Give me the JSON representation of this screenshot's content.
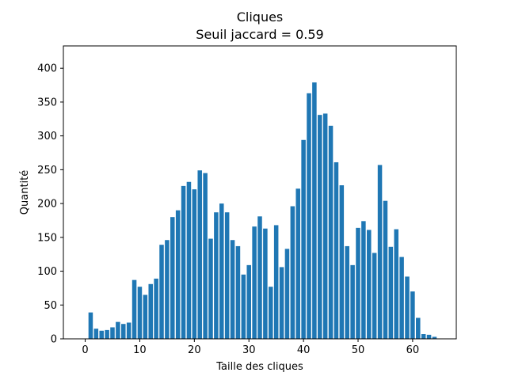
{
  "chart_data": {
    "type": "bar",
    "title": "Cliques",
    "subtitle": "Seuil jaccard = 0.59",
    "xlabel": "Taille des cliques",
    "ylabel": "Quantité",
    "xlim": [
      -4,
      68
    ],
    "ylim": [
      0,
      433
    ],
    "xticks": [
      0,
      10,
      20,
      30,
      40,
      50,
      60
    ],
    "yticks": [
      0,
      50,
      100,
      150,
      200,
      250,
      300,
      350,
      400
    ],
    "grid": false,
    "bar_color": "#1f77b4",
    "x": [
      1,
      2,
      3,
      4,
      5,
      6,
      7,
      8,
      9,
      10,
      11,
      12,
      13,
      14,
      15,
      16,
      17,
      18,
      19,
      20,
      21,
      22,
      23,
      24,
      25,
      26,
      27,
      28,
      29,
      30,
      31,
      32,
      33,
      34,
      35,
      36,
      37,
      38,
      39,
      40,
      41,
      42,
      43,
      44,
      45,
      46,
      47,
      48,
      49,
      50,
      51,
      52,
      53,
      54,
      55,
      56,
      57,
      58,
      59,
      60,
      61,
      62,
      63,
      64
    ],
    "values": [
      39,
      15,
      12,
      13,
      17,
      25,
      22,
      24,
      87,
      77,
      65,
      81,
      89,
      139,
      146,
      180,
      190,
      226,
      232,
      221,
      249,
      245,
      148,
      187,
      200,
      187,
      146,
      137,
      95,
      109,
      166,
      181,
      163,
      77,
      168,
      106,
      133,
      196,
      222,
      294,
      363,
      379,
      331,
      333,
      315,
      261,
      227,
      137,
      109,
      164,
      174,
      161,
      127,
      257,
      204,
      136,
      162,
      121,
      92,
      70,
      31,
      7,
      6,
      3
    ]
  }
}
